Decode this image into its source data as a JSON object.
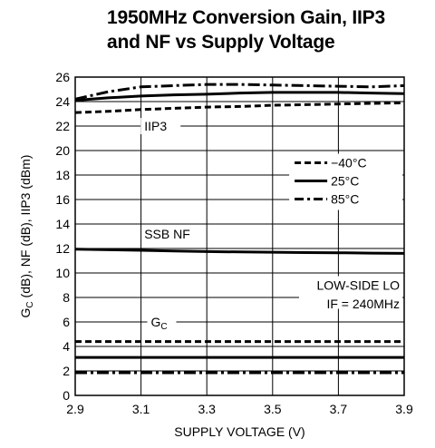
{
  "chart_data": {
    "type": "line",
    "title_lines": [
      "1950MHz Conversion Gain, IIP3",
      "and NF vs Supply Voltage"
    ],
    "xlabel": "SUPPLY VOLTAGE (V)",
    "ylabel_parts": [
      "G",
      "C",
      " (dB), NF (dB), IIP3 (dBm)"
    ],
    "xlim": [
      2.9,
      3.9
    ],
    "ylim": [
      0,
      26
    ],
    "x_ticks": [
      "2.9",
      "3.1",
      "3.3",
      "3.5",
      "3.7",
      "3.9"
    ],
    "y_ticks": [
      "0",
      "2",
      "4",
      "6",
      "8",
      "10",
      "12",
      "14",
      "16",
      "18",
      "20",
      "22",
      "24",
      "26"
    ],
    "grid": true,
    "legend": {
      "placement": "right",
      "entries": [
        {
          "label": "−40°C",
          "style": "dashed"
        },
        {
          "label": "25°C",
          "style": "solid"
        },
        {
          "label": "85°C",
          "style": "dashdot"
        }
      ]
    },
    "annotations": {
      "iip3": "IIP3",
      "nf": "SSB NF",
      "gc_main": "G",
      "gc_sub": "C",
      "lo_line1": "LOW-SIDE LO",
      "lo_line2": "IF = 240MHz"
    },
    "x": [
      2.9,
      3.0,
      3.1,
      3.2,
      3.3,
      3.4,
      3.5,
      3.6,
      3.7,
      3.8,
      3.9
    ],
    "series": [
      {
        "group": "IIP3",
        "temp": "−40°C",
        "style": "dashed",
        "values": [
          23.1,
          23.2,
          23.35,
          23.45,
          23.55,
          23.6,
          23.7,
          23.75,
          23.8,
          23.85,
          23.9
        ]
      },
      {
        "group": "IIP3",
        "temp": "25°C",
        "style": "solid",
        "values": [
          24.1,
          24.3,
          24.45,
          24.55,
          24.6,
          24.7,
          24.75,
          24.75,
          24.75,
          24.7,
          24.65
        ]
      },
      {
        "group": "IIP3",
        "temp": "85°C",
        "style": "dashdot",
        "values": [
          24.2,
          24.8,
          25.2,
          25.3,
          25.4,
          25.4,
          25.35,
          25.3,
          25.25,
          25.2,
          25.3
        ]
      },
      {
        "group": "SSB NF",
        "temp": "25°C",
        "style": "solid",
        "values": [
          11.95,
          11.9,
          11.85,
          11.8,
          11.75,
          11.72,
          11.7,
          11.67,
          11.65,
          11.62,
          11.6
        ]
      },
      {
        "group": "GC",
        "temp": "−40°C",
        "style": "dashed",
        "values": [
          4.4,
          4.4,
          4.4,
          4.4,
          4.4,
          4.4,
          4.4,
          4.4,
          4.4,
          4.4,
          4.4
        ]
      },
      {
        "group": "GC",
        "temp": "25°C",
        "style": "solid",
        "values": [
          3.1,
          3.1,
          3.1,
          3.1,
          3.1,
          3.1,
          3.1,
          3.1,
          3.1,
          3.1,
          3.1
        ]
      },
      {
        "group": "GC",
        "temp": "85°C",
        "style": "dashdot",
        "values": [
          1.85,
          1.85,
          1.85,
          1.85,
          1.85,
          1.85,
          1.85,
          1.85,
          1.85,
          1.85,
          1.85
        ]
      }
    ]
  }
}
